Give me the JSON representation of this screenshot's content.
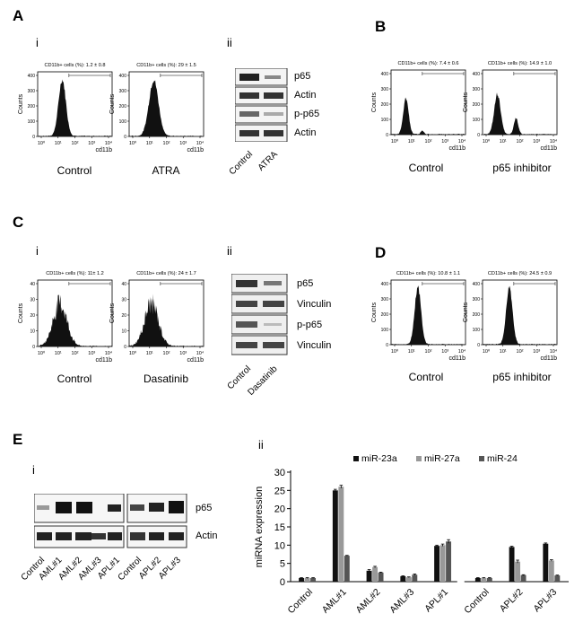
{
  "panels": {
    "A": {
      "letter": "A",
      "i": {
        "sublabel": "i",
        "plots": [
          {
            "stat": "CD11b+ cells (%): 1.2 ± 0.8",
            "caption": "Control",
            "ylabel": "Counts",
            "xlabel": "cd11b",
            "yticks": [
              "400",
              "300",
              "200",
              "100",
              "0"
            ],
            "xticks": [
              "10⁰",
              "10¹",
              "10²",
              "10³",
              "10⁴"
            ]
          },
          {
            "stat": "CD11b+ cells (%): 29 ± 1.5",
            "caption": "ATRA",
            "ylabel": "Counts",
            "xlabel": "cd11b",
            "yticks": [
              "400",
              "300",
              "200",
              "100",
              "0"
            ],
            "xticks": [
              "10⁰",
              "10¹",
              "10²",
              "10³",
              "10⁴"
            ]
          }
        ]
      },
      "ii": {
        "sublabel": "ii",
        "bands": [
          "p65",
          "Actin",
          "p-p65",
          "Actin"
        ],
        "lanes": [
          "Control",
          "ATRA"
        ]
      }
    },
    "B": {
      "letter": "B",
      "plots": [
        {
          "stat": "CD11b+ cells (%): 7.4 ± 0.6",
          "caption": "Control",
          "ylabel": "Counts",
          "xlabel": "cd11b",
          "yticks": [
            "400",
            "300",
            "200",
            "100",
            "0"
          ],
          "xticks": [
            "10⁰",
            "10¹",
            "10²",
            "10³",
            "10⁴"
          ]
        },
        {
          "stat": "CD11b+ cells (%): 14.9 ± 1.0",
          "caption": "p65 inhibitor",
          "ylabel": "Counts",
          "xlabel": "cd11b",
          "yticks": [
            "400",
            "300",
            "200",
            "100",
            "0"
          ],
          "xticks": [
            "10⁰",
            "10¹",
            "10²",
            "10³",
            "10⁴"
          ]
        }
      ]
    },
    "C": {
      "letter": "C",
      "i": {
        "sublabel": "i",
        "plots": [
          {
            "stat": "CD11b+ cells (%): 11± 1.2",
            "caption": "Control",
            "ylabel": "Counts",
            "xlabel": "cd11b",
            "yticks": [
              "40",
              "30",
              "20",
              "10",
              "0"
            ],
            "xticks": [
              "10⁰",
              "10¹",
              "10²",
              "10³",
              "10⁴"
            ]
          },
          {
            "stat": "CD11b+ cells (%): 24 ± 1.7",
            "caption": "Dasatinib",
            "ylabel": "Counts",
            "xlabel": "cd11b",
            "yticks": [
              "40",
              "30",
              "20",
              "10",
              "0"
            ],
            "xticks": [
              "10⁰",
              "10¹",
              "10²",
              "10³",
              "10⁴"
            ]
          }
        ]
      },
      "ii": {
        "sublabel": "ii",
        "bands": [
          "p65",
          "Vinculin",
          "p-p65",
          "Vinculin"
        ],
        "lanes": [
          "Control",
          "Dasatinib"
        ]
      }
    },
    "D": {
      "letter": "D",
      "plots": [
        {
          "stat": "CD11b+ cells (%): 10.8 ± 1.1",
          "caption": "Control",
          "ylabel": "Counts",
          "xlabel": "cd11b",
          "yticks": [
            "400",
            "300",
            "200",
            "100",
            "0"
          ],
          "xticks": [
            "10⁰",
            "10¹",
            "10²",
            "10³",
            "10⁴"
          ]
        },
        {
          "stat": "CD11b+ cells (%): 24.5 ± 0.9",
          "caption": "p65 inhibitor",
          "ylabel": "Counts",
          "xlabel": "cd11b",
          "yticks": [
            "400",
            "300",
            "200",
            "100",
            "0"
          ],
          "xticks": [
            "10⁰",
            "10¹",
            "10²",
            "10³",
            "10⁴"
          ]
        }
      ]
    },
    "E": {
      "letter": "E",
      "i": {
        "sublabel": "i",
        "bands": [
          "p65",
          "Actin"
        ],
        "lanes": [
          "Control",
          "AML#1",
          "AML#2",
          "AML#3",
          "APL#1",
          "Control",
          "APL#2",
          "APL#3"
        ]
      },
      "ii": {
        "sublabel": "ii"
      }
    }
  },
  "chart_data": {
    "type": "bar",
    "ylabel": "miRNA expression",
    "ylim": [
      0,
      30
    ],
    "yticks": [
      0,
      5,
      10,
      15,
      20,
      25,
      30
    ],
    "categories": [
      "Control",
      "AML#1",
      "AML#2",
      "AML#3",
      "APL#1",
      "Control",
      "APL#2",
      "APL#3"
    ],
    "series": [
      {
        "name": "miR-23a",
        "color": "#111111",
        "values": [
          1.0,
          25.0,
          3.0,
          1.5,
          9.8,
          1.0,
          9.5,
          10.4
        ],
        "errors": [
          0.1,
          0.3,
          0.3,
          0.1,
          0.2,
          0.1,
          0.2,
          0.2
        ]
      },
      {
        "name": "miR-27a",
        "color": "#999999",
        "values": [
          1.0,
          26.0,
          4.0,
          1.2,
          10.0,
          1.0,
          5.5,
          5.8
        ],
        "errors": [
          0.1,
          0.4,
          0.2,
          0.1,
          0.3,
          0.1,
          0.4,
          0.2
        ]
      },
      {
        "name": "miR-24",
        "color": "#555555",
        "values": [
          1.0,
          7.1,
          2.5,
          1.9,
          11.0,
          1.0,
          1.8,
          1.7
        ],
        "errors": [
          0.1,
          0.1,
          0.1,
          0.2,
          0.5,
          0.1,
          0.1,
          0.1
        ]
      }
    ]
  }
}
